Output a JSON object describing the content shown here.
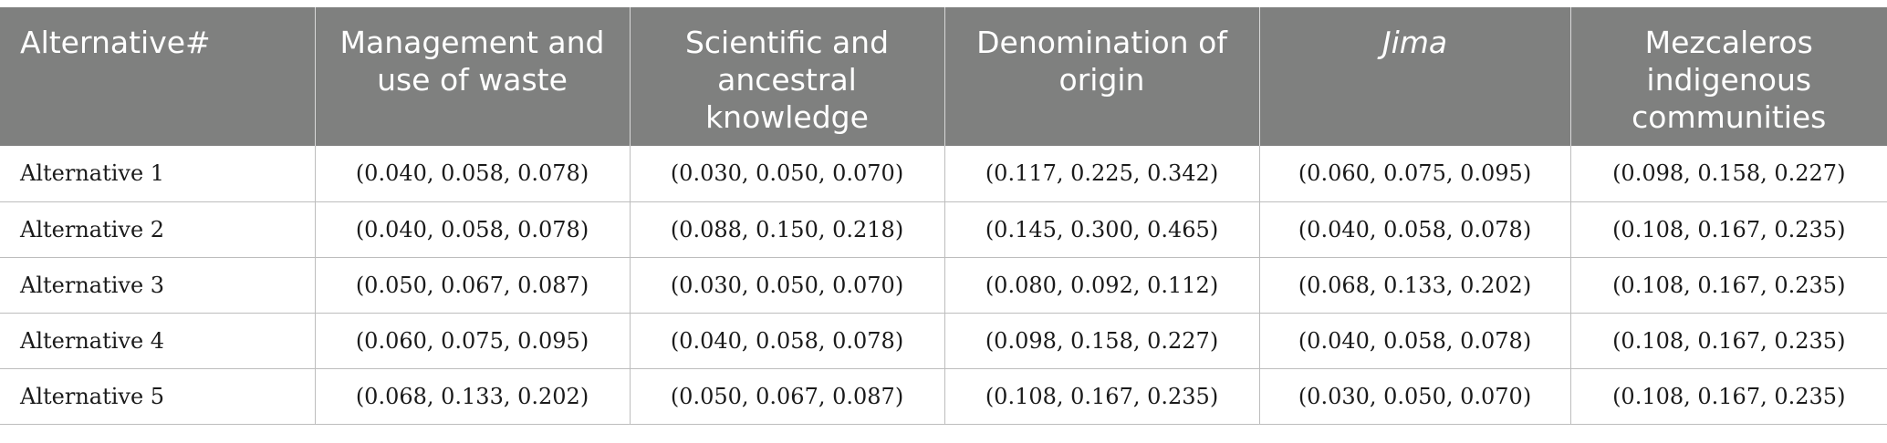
{
  "table": {
    "headers": [
      "Alternative#",
      "Management and use of waste",
      "Scientific and ancestral knowledge",
      "Denomination of origin",
      "Jima",
      "Mezcaleros indigenous communities"
    ],
    "rows": [
      [
        "Alternative 1",
        "(0.040, 0.058, 0.078)",
        "(0.030, 0.050, 0.070)",
        "(0.117, 0.225, 0.342)",
        "(0.060, 0.075, 0.095)",
        "(0.098, 0.158, 0.227)"
      ],
      [
        "Alternative 2",
        "(0.040, 0.058, 0.078)",
        "(0.088, 0.150, 0.218)",
        "(0.145, 0.300, 0.465)",
        "(0.040, 0.058, 0.078)",
        "(0.108, 0.167, 0.235)"
      ],
      [
        "Alternative 3",
        "(0.050, 0.067, 0.087)",
        "(0.030, 0.050, 0.070)",
        "(0.080, 0.092, 0.112)",
        "(0.068, 0.133, 0.202)",
        "(0.108, 0.167, 0.235)"
      ],
      [
        "Alternative 4",
        "(0.060, 0.075, 0.095)",
        "(0.040, 0.058, 0.078)",
        "(0.098, 0.158, 0.227)",
        "(0.040, 0.058, 0.078)",
        "(0.108, 0.167, 0.235)"
      ],
      [
        "Alternative 5",
        "(0.068, 0.133, 0.202)",
        "(0.050, 0.067, 0.087)",
        "(0.108, 0.167, 0.235)",
        "(0.030, 0.050, 0.070)",
        "(0.108, 0.167, 0.235)"
      ]
    ],
    "header_bg": "#7f807f",
    "header_text_color": "#ffffff",
    "grid_color": "#bdbdbd"
  }
}
